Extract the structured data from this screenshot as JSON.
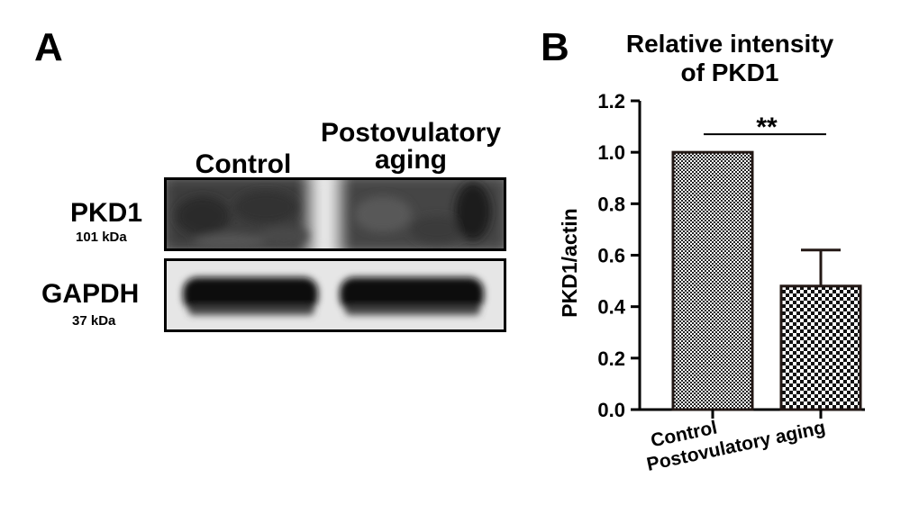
{
  "panel_a": {
    "letter": "A",
    "lanes": [
      "Control",
      "Postovulatory aging"
    ],
    "lane_label_lines": [
      [
        "Control"
      ],
      [
        "Postovulatory",
        "aging"
      ]
    ],
    "rows": [
      {
        "protein": "PKD1",
        "size": "101 kDa"
      },
      {
        "protein": "GAPDH",
        "size": "37 kDa"
      }
    ]
  },
  "panel_b": {
    "letter": "B"
  },
  "chart_data": {
    "type": "bar",
    "title": "Relative  intensity\nof PKD1",
    "title_lines": [
      "Relative  intensity",
      "of PKD1"
    ],
    "ylabel": "PKD1/actin",
    "xlabel": "",
    "categories": [
      "Control",
      "Postovulatory aging"
    ],
    "values": [
      1.0,
      0.48
    ],
    "error_upper": [
      0,
      0.14
    ],
    "ylim": [
      0,
      1.2
    ],
    "yticks": [
      "0.0",
      "0.2",
      "0.4",
      "0.6",
      "0.8",
      "1.0",
      "1.2"
    ],
    "yticks_values": [
      0.0,
      0.2,
      0.4,
      0.6,
      0.8,
      1.0,
      1.2
    ],
    "significance": "**",
    "bar_patterns": [
      "fine-checker",
      "coarse-checker"
    ],
    "grid": false,
    "colors": {
      "bar_edge": "#231815",
      "pattern_dark": "#1a1a1a"
    }
  }
}
